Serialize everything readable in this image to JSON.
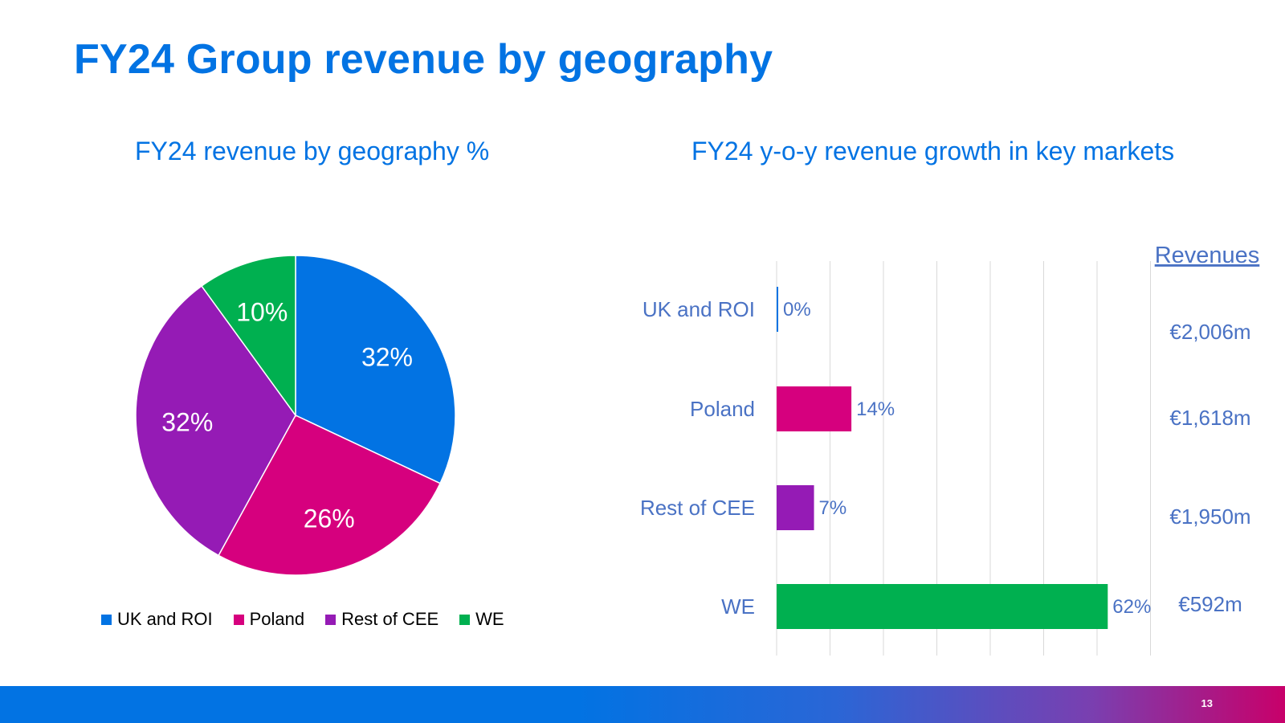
{
  "title": "FY24 Group revenue by geography",
  "page_number": "13",
  "colors": {
    "title": "#0273e3",
    "text_blue": "#4a72c4",
    "uk_roi": "#0273e3",
    "poland": "#d6007e",
    "rest_of_cee": "#951bb5",
    "we": "#00b050"
  },
  "chart_data": [
    {
      "type": "pie",
      "title": "FY24 revenue by geography %",
      "categories": [
        "UK and ROI",
        "Poland",
        "Rest of CEE",
        "WE"
      ],
      "values": [
        32,
        26,
        32,
        10
      ],
      "labels": [
        "32%",
        "26%",
        "32%",
        "10%"
      ],
      "colors": [
        "#0273e3",
        "#d6007e",
        "#951bb5",
        "#00b050"
      ],
      "legend": "bottom"
    },
    {
      "type": "bar",
      "orientation": "horizontal",
      "title": "FY24 y-o-y revenue growth in key markets",
      "categories": [
        "UK and ROI",
        "Poland",
        "Rest of CEE",
        "WE"
      ],
      "values": [
        0,
        14,
        7,
        62
      ],
      "labels": [
        "0%",
        "14%",
        "7%",
        "62%"
      ],
      "colors": [
        "#0273e3",
        "#d6007e",
        "#951bb5",
        "#00b050"
      ],
      "xlim": [
        0,
        70
      ],
      "grid": true,
      "revenues_header": "Revenues",
      "revenues": [
        "€2,006m",
        "€1,618m",
        "€1,950m",
        "€592m"
      ]
    }
  ]
}
